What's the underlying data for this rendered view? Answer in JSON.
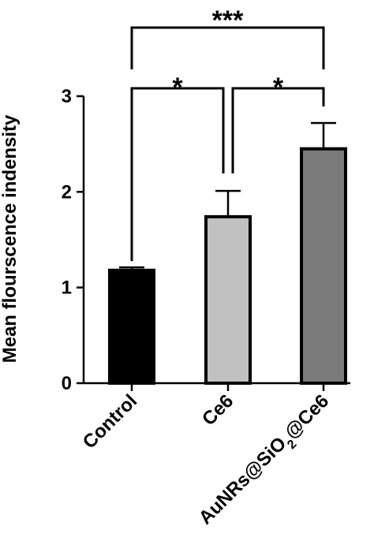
{
  "chart_data": {
    "type": "bar",
    "title": "",
    "xlabel": "",
    "ylabel": "Mean flourscence indensity",
    "ylim": [
      0,
      3
    ],
    "yticks": [
      0,
      1,
      2,
      3
    ],
    "categories": [
      "Control",
      "Ce6",
      "AuNRs@SiO2@Ce6"
    ],
    "category_parts": [
      [
        {
          "t": "Control",
          "sub": false
        }
      ],
      [
        {
          "t": "Ce6",
          "sub": false
        }
      ],
      [
        {
          "t": "AuNRs@SiO",
          "sub": false
        },
        {
          "t": "2",
          "sub": true
        },
        {
          "t": "@Ce6",
          "sub": false
        }
      ]
    ],
    "values": [
      1.18,
      1.74,
      2.45
    ],
    "errors": [
      0.03,
      0.27,
      0.27
    ],
    "bar_colors": [
      "#000000",
      "#c0c0c0",
      "#7a7a7a"
    ],
    "significance": [
      {
        "from": 0,
        "to": 1,
        "label": "*"
      },
      {
        "from": 1,
        "to": 2,
        "label": "*"
      },
      {
        "from": 0,
        "to": 2,
        "label": "***"
      }
    ]
  }
}
